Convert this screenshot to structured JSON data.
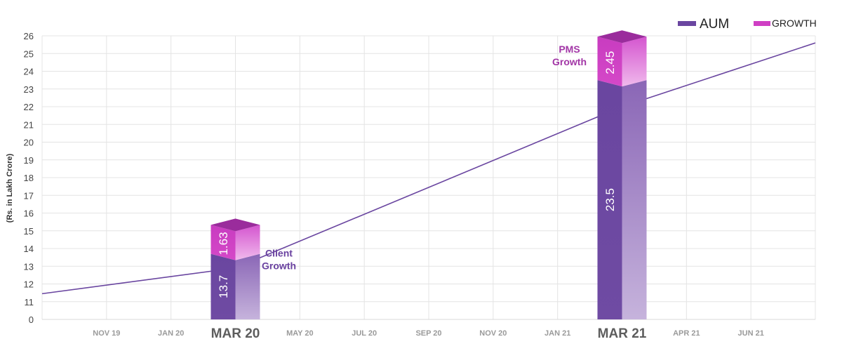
{
  "chart_data": {
    "type": "bar",
    "title": "",
    "ylabel": "(Rs. in Lakh Crore)",
    "xlabel": "",
    "ylim": [
      10,
      26
    ],
    "y_axis_break": true,
    "y_ticks": [
      "0",
      "11",
      "12",
      "13",
      "14",
      "15",
      "16",
      "17",
      "18",
      "19",
      "20",
      "21",
      "22",
      "23",
      "24",
      "25",
      "26"
    ],
    "x_ticks": [
      {
        "label": "NOV 19",
        "major": false
      },
      {
        "label": "JAN 20",
        "major": false
      },
      {
        "label": "MAR 20",
        "major": true
      },
      {
        "label": "MAY 20",
        "major": false
      },
      {
        "label": "JUL 20",
        "major": false
      },
      {
        "label": "SEP 20",
        "major": false
      },
      {
        "label": "NOV 20",
        "major": false
      },
      {
        "label": "JAN 21",
        "major": false
      },
      {
        "label": "MAR 21",
        "major": true
      },
      {
        "label": "APR 21",
        "major": false
      },
      {
        "label": "JUN 21",
        "major": false
      }
    ],
    "categories": [
      "MAR 20",
      "MAR 21"
    ],
    "series": [
      {
        "name": "AUM",
        "values": [
          13.7,
          23.5
        ],
        "labels": [
          "13.7",
          "23.5"
        ]
      },
      {
        "name": "GROWTH",
        "values": [
          1.63,
          2.45
        ],
        "labels": [
          "1.63",
          "2.45"
        ]
      }
    ],
    "trend_line": {
      "x": [
        "start",
        "MAR 20",
        "MAR 21",
        "end"
      ],
      "y": [
        11.45,
        12.9,
        22.0,
        25.6
      ]
    },
    "annotations": [
      {
        "line1": "Client",
        "line2": "Growth",
        "near": "MAR 20",
        "color": "#6a42a0"
      },
      {
        "line1": "PMS",
        "line2": "Growth",
        "near": "MAR 21",
        "color": "#a236a6"
      }
    ],
    "legend": {
      "position": "top-right"
    },
    "grid": true,
    "colors": {
      "aum": "#6a46a0",
      "growth": "#cf3fc4",
      "line": "#6a46a0",
      "grid": "#e4e4e4"
    }
  }
}
